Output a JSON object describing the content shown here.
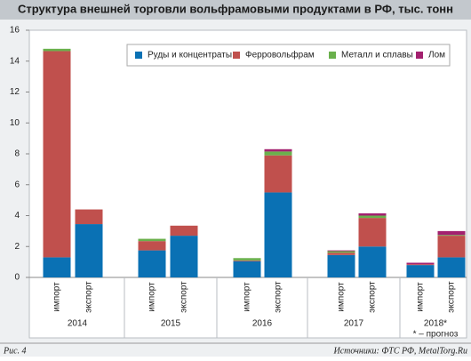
{
  "chart_data": {
    "type": "bar",
    "stacked": true,
    "title": "Структура внешней торговли вольфрамовыми продуктами в РФ, тыс. тонн",
    "categories": [
      "импорт",
      "экспорт",
      "импорт",
      "экспорт",
      "импорт",
      "экспорт",
      "импорт",
      "экспорт",
      "импорт",
      "экспорт"
    ],
    "groups": [
      "2014",
      "2015",
      "2016",
      "2017",
      "2018*"
    ],
    "note": "* – прогноз",
    "series": [
      {
        "name": "Руды и концентраты",
        "color": "#0a71b4",
        "values": [
          1.3,
          3.45,
          1.75,
          2.7,
          1.05,
          5.5,
          1.45,
          2,
          0.8,
          1.3
        ]
      },
      {
        "name": "Ферровольфрам",
        "color": "#c0504d",
        "values": [
          13.35,
          0.95,
          0.6,
          0.65,
          0.05,
          2.4,
          0.15,
          1.85,
          0.05,
          1.4
        ]
      },
      {
        "name": "Металл и сплавы",
        "color": "#6ab04c",
        "values": [
          0.15,
          0,
          0.15,
          0,
          0.15,
          0.25,
          0.1,
          0.15,
          0,
          0.05
        ]
      },
      {
        "name": "Лом",
        "color": "#a3206f",
        "values": [
          0,
          0,
          0,
          0,
          0,
          0.15,
          0.05,
          0.15,
          0.1,
          0.25
        ]
      }
    ],
    "ylim": [
      0,
      16
    ],
    "yticks": [
      0,
      2,
      4,
      6,
      8,
      10,
      12,
      14,
      16
    ],
    "grid": false
  },
  "footer": {
    "figure_label": "Рис. 4",
    "source": "Источники: ФТС РФ, MetalTorg.Ru"
  }
}
